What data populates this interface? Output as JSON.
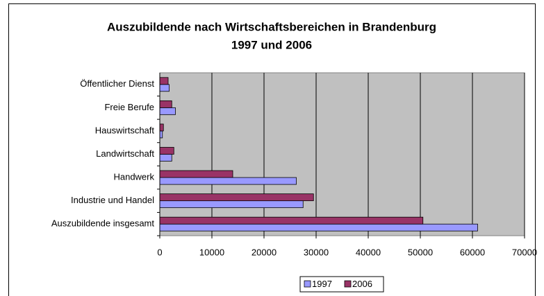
{
  "chart_data": {
    "type": "bar",
    "orientation": "horizontal",
    "title": "Auszubildende nach Wirtschaftsbereichen in Brandenburg",
    "subtitle": "1997 und 2006",
    "categories": [
      "Auszubildende insgesamt",
      "Industrie und Handel",
      "Handwerk",
      "Landwirtschaft",
      "Hauswirtschaft",
      "Freie Berufe",
      "Öffentlicher Dienst"
    ],
    "series": [
      {
        "name": "1997",
        "color": "#9999ff",
        "values": [
          61000,
          27500,
          26200,
          2300,
          500,
          3000,
          1800
        ]
      },
      {
        "name": "2006",
        "color": "#993366",
        "values": [
          50500,
          29500,
          14000,
          2700,
          700,
          2300,
          1600
        ]
      }
    ],
    "xlim": [
      0,
      70000
    ],
    "xticks": [
      0,
      10000,
      20000,
      30000,
      40000,
      50000,
      60000,
      70000
    ],
    "grid": true,
    "plot_background": "#c0c0c0",
    "legend": "bottom"
  }
}
